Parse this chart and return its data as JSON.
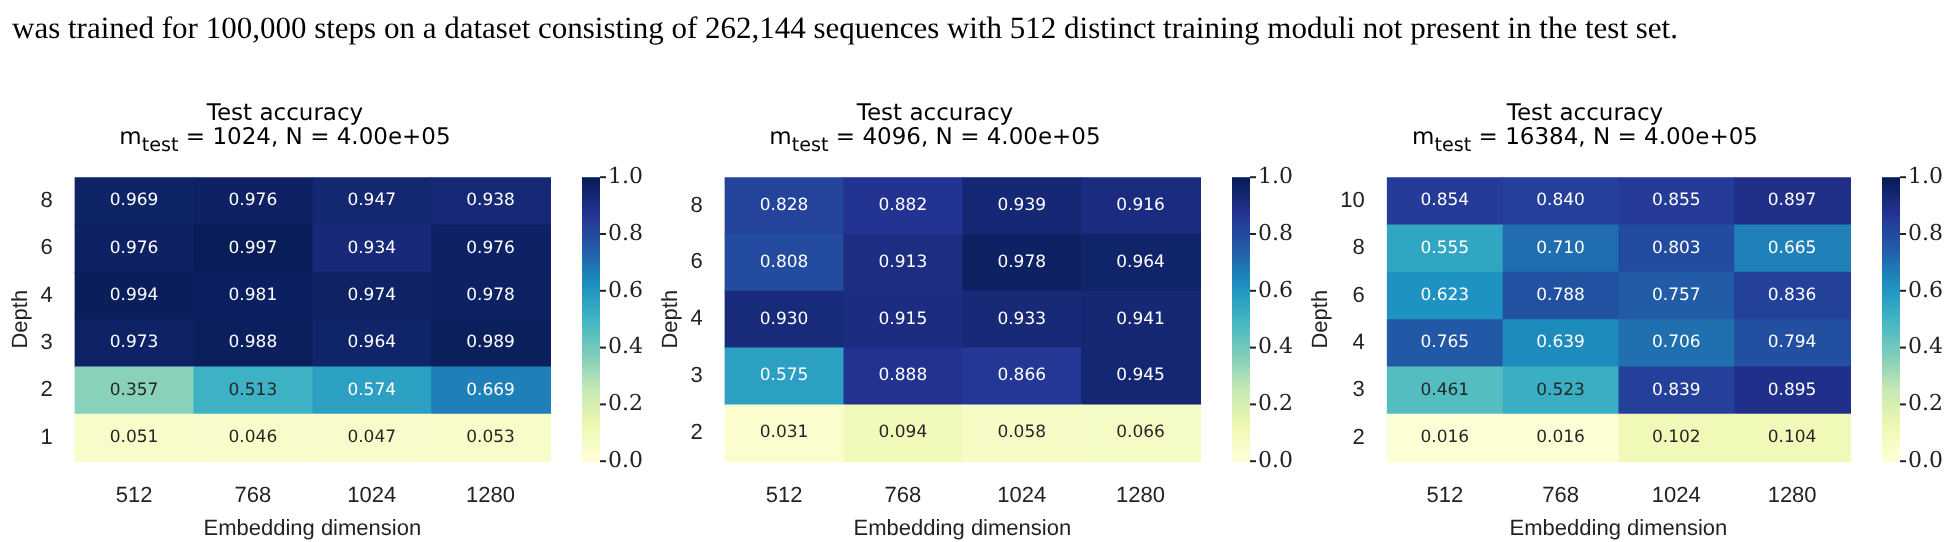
{
  "chart_data": [
    {
      "type": "heatmap",
      "title": "Test accuracy",
      "subtitle": "m$_{test}$ = 1024, N = 4.00e+05",
      "xlabel": "Embedding dimension",
      "ylabel": "Depth",
      "annotations": [
        "was trained for 100,000 steps on a dataset consisting of 262,144 sequences with 512 distinct training moduli not present in the test set."
      ],
      "categories": [
        "512",
        "768",
        "1024",
        "1280"
      ],
      "y_categories": [
        "8",
        "6",
        "4",
        "3",
        "2",
        "1"
      ],
      "cells": [
        [
          0.969,
          0.976,
          0.947,
          0.938
        ],
        [
          0.976,
          0.997,
          0.934,
          0.976
        ],
        [
          0.994,
          0.981,
          0.974,
          0.978
        ],
        [
          0.973,
          0.988,
          0.964,
          0.989
        ],
        [
          0.357,
          0.513,
          0.574,
          0.669
        ],
        [
          0.051,
          0.046,
          0.047,
          0.053
        ]
      ],
      "clim": [
        0,
        1
      ],
      "cticks": [
        {
          "value": 0,
          "label": "0.0"
        },
        {
          "value": 0.2,
          "label": "0.2"
        },
        {
          "value": 0.4,
          "label": "0.4"
        },
        {
          "value": 0.6,
          "label": "0.6"
        },
        {
          "value": 0.8,
          "label": "0.8"
        },
        {
          "value": 1,
          "label": "1.0"
        }
      ],
      "data_labels": true
    },
    {
      "type": "heatmap",
      "title": "Test accuracy",
      "subtitle": "m$_{test}$ = 4096, N = 4.00e+05",
      "xlabel": "Embedding dimension",
      "ylabel": "Depth",
      "categories": [
        "512",
        "768",
        "1024",
        "1280"
      ],
      "y_categories": [
        "8",
        "6",
        "4",
        "3",
        "2"
      ],
      "cells": [
        [
          0.828,
          0.882,
          0.939,
          0.916
        ],
        [
          0.808,
          0.913,
          0.978,
          0.964
        ],
        [
          0.93,
          0.915,
          0.933,
          0.941
        ],
        [
          0.575,
          0.888,
          0.866,
          0.945
        ],
        [
          0.031,
          0.094,
          0.058,
          0.066
        ]
      ],
      "cell_labels": [
        [
          "0.828",
          "0.882",
          "0.939",
          "0.916"
        ],
        [
          "0.808",
          "0.913",
          "0.978",
          "0.964"
        ],
        [
          "0.930",
          "0.915",
          "0.933",
          "0.941"
        ],
        [
          "0.575",
          "0.888",
          "0.866",
          "0.945"
        ],
        [
          "0.031",
          "0.094",
          "0.058",
          "0.066"
        ]
      ],
      "clim": [
        0,
        1
      ],
      "cticks": [
        {
          "value": 0,
          "label": "0.0"
        },
        {
          "value": 0.2,
          "label": "0.2"
        },
        {
          "value": 0.4,
          "label": "0.4"
        },
        {
          "value": 0.6,
          "label": "0.6"
        },
        {
          "value": 0.8,
          "label": "0.8"
        },
        {
          "value": 1,
          "label": "1.0"
        }
      ],
      "data_labels": true
    },
    {
      "type": "heatmap",
      "title": "Test accuracy",
      "subtitle": "m$_{test}$ = 16384, N = 4.00e+05",
      "xlabel": "Embedding dimension",
      "ylabel": "Depth",
      "categories": [
        "512",
        "768",
        "1024",
        "1280"
      ],
      "y_categories": [
        "10",
        "8",
        "6",
        "4",
        "3",
        "2"
      ],
      "cells": [
        [
          0.854,
          0.84,
          0.855,
          0.897
        ],
        [
          0.555,
          0.71,
          0.803,
          0.665
        ],
        [
          0.623,
          0.788,
          0.757,
          0.836
        ],
        [
          0.765,
          0.639,
          0.706,
          0.794
        ],
        [
          0.461,
          0.523,
          0.839,
          0.895
        ],
        [
          0.016,
          0.016,
          0.102,
          0.104
        ]
      ],
      "cell_labels": [
        [
          "0.854",
          "0.840",
          "0.855",
          "0.897"
        ],
        [
          "0.555",
          "0.710",
          "0.803",
          "0.665"
        ],
        [
          "0.623",
          "0.788",
          "0.757",
          "0.836"
        ],
        [
          "0.765",
          "0.639",
          "0.706",
          "0.794"
        ],
        [
          "0.461",
          "0.523",
          "0.839",
          "0.895"
        ],
        [
          "0.016",
          "0.016",
          "0.102",
          "0.104"
        ]
      ],
      "clim": [
        0,
        1
      ],
      "cticks": [
        {
          "value": 0,
          "label": "0.0"
        },
        {
          "value": 0.2,
          "label": "0.2"
        },
        {
          "value": 0.4,
          "label": "0.4"
        },
        {
          "value": 0.6,
          "label": "0.6"
        },
        {
          "value": 0.8,
          "label": "0.8"
        },
        {
          "value": 1,
          "label": "1.0"
        }
      ],
      "data_labels": true
    }
  ]
}
